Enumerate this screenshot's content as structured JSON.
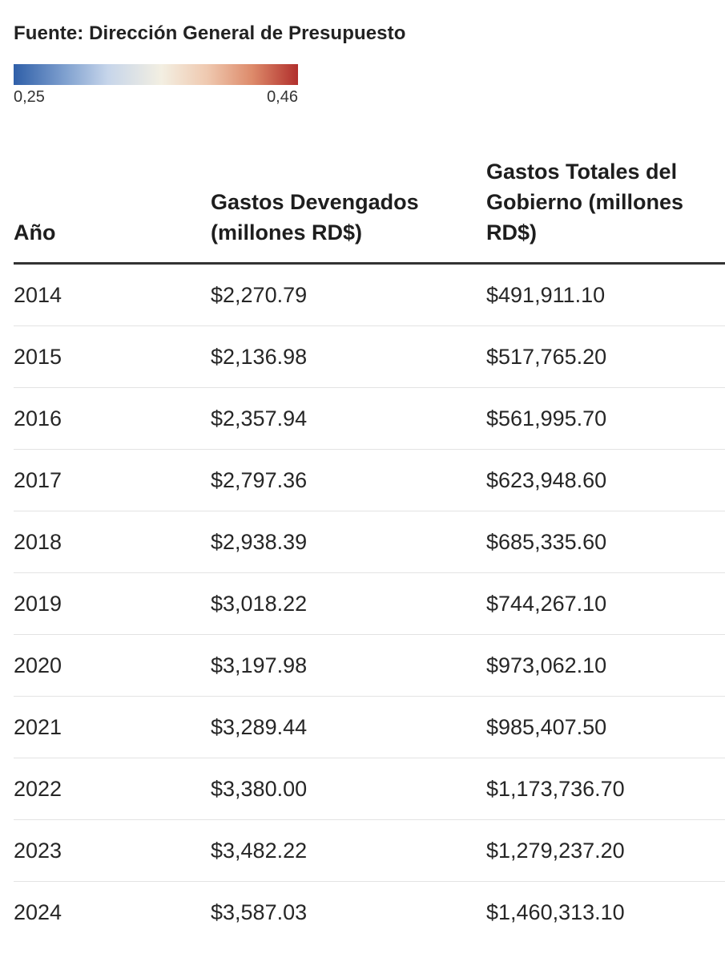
{
  "source": "Fuente: Dirección General de Presupuesto",
  "legend": {
    "min_label": "0,25",
    "max_label": "0,46",
    "colors": [
      "#2f5fa8",
      "#f3efe2",
      "#b12f2c"
    ]
  },
  "chart_data": {
    "type": "table",
    "columns": [
      "Año",
      "Gastos Devengados (millones RD$)",
      "Gastos Totales del Gobierno (millones RD$)"
    ],
    "rows": [
      [
        "2014",
        "$2,270.79",
        "$491,911.10"
      ],
      [
        "2015",
        "$2,136.98",
        "$517,765.20"
      ],
      [
        "2016",
        "$2,357.94",
        "$561,995.70"
      ],
      [
        "2017",
        "$2,797.36",
        "$623,948.60"
      ],
      [
        "2018",
        "$2,938.39",
        "$685,335.60"
      ],
      [
        "2019",
        "$3,018.22",
        "$744,267.10"
      ],
      [
        "2020",
        "$3,197.98",
        "$973,062.10"
      ],
      [
        "2021",
        "$3,289.44",
        "$985,407.50"
      ],
      [
        "2022",
        "$3,380.00",
        "$1,173,736.70"
      ],
      [
        "2023",
        "$3,482.22",
        "$1,279,237.20"
      ],
      [
        "2024",
        "$3,587.03",
        "$1,460,313.10"
      ]
    ]
  }
}
